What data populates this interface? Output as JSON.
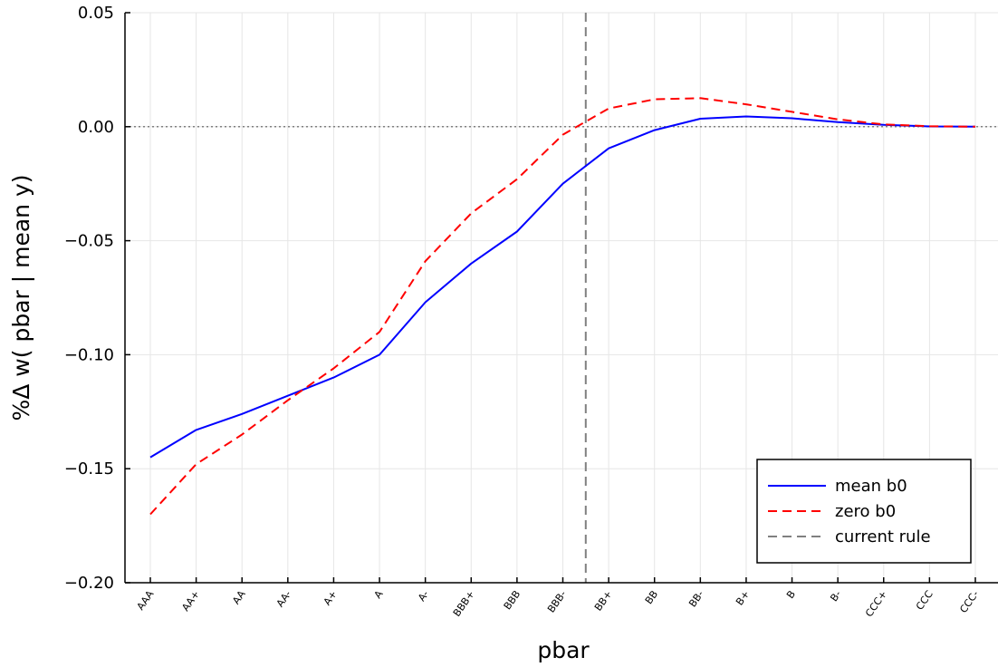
{
  "chart_data": {
    "type": "line",
    "xlabel": "pbar",
    "ylabel": "%Δ w( pbar | mean y)",
    "ylim": [
      -0.2,
      0.05
    ],
    "y_ticks": [
      -0.2,
      -0.15,
      -0.1,
      -0.05,
      0.0,
      0.05
    ],
    "y_tick_labels": [
      "−0.20",
      "−0.15",
      "−0.10",
      "−0.05",
      "0.00",
      "0.05"
    ],
    "categories": [
      "AAA",
      "AA+",
      "AA",
      "AA-",
      "A+",
      "A",
      "A-",
      "BBB+",
      "BBB",
      "BBB-",
      "BB+",
      "BB",
      "BB-",
      "B+",
      "B",
      "B-",
      "CCC+",
      "CCC",
      "CCC-"
    ],
    "grid": true,
    "legend_position": "bottom-right",
    "series": [
      {
        "name": "mean b0",
        "color": "#0000ff",
        "dash": "solid",
        "values": [
          -0.145,
          -0.133,
          -0.126,
          -0.118,
          -0.11,
          -0.1,
          -0.077,
          -0.06,
          -0.046,
          -0.025,
          -0.0095,
          -0.0015,
          0.0035,
          0.0045,
          0.0037,
          0.002,
          0.0008,
          0.0001,
          0.0
        ]
      },
      {
        "name": "zero b0",
        "color": "#ff0000",
        "dash": "dashed",
        "values": [
          -0.17,
          -0.148,
          -0.135,
          -0.12,
          -0.106,
          -0.09,
          -0.059,
          -0.038,
          -0.023,
          -0.0035,
          0.008,
          0.012,
          0.0125,
          0.0098,
          0.0065,
          0.0032,
          0.001,
          0.0002,
          0.0
        ]
      }
    ],
    "reference_lines": [
      {
        "name": "current rule",
        "orientation": "vertical",
        "position_between": [
          "BBB-",
          "BB+"
        ],
        "x_index": 9.5,
        "color": "#808080",
        "dash": "dashed"
      },
      {
        "orientation": "horizontal",
        "y": 0.0,
        "color": "#808080",
        "dash": "dotted"
      }
    ],
    "legend": [
      {
        "label": "mean b0",
        "color": "#0000ff",
        "dash": "solid"
      },
      {
        "label": "zero b0",
        "color": "#ff0000",
        "dash": "dashed"
      },
      {
        "label": "current rule",
        "color": "#808080",
        "dash": "dashed"
      }
    ]
  }
}
